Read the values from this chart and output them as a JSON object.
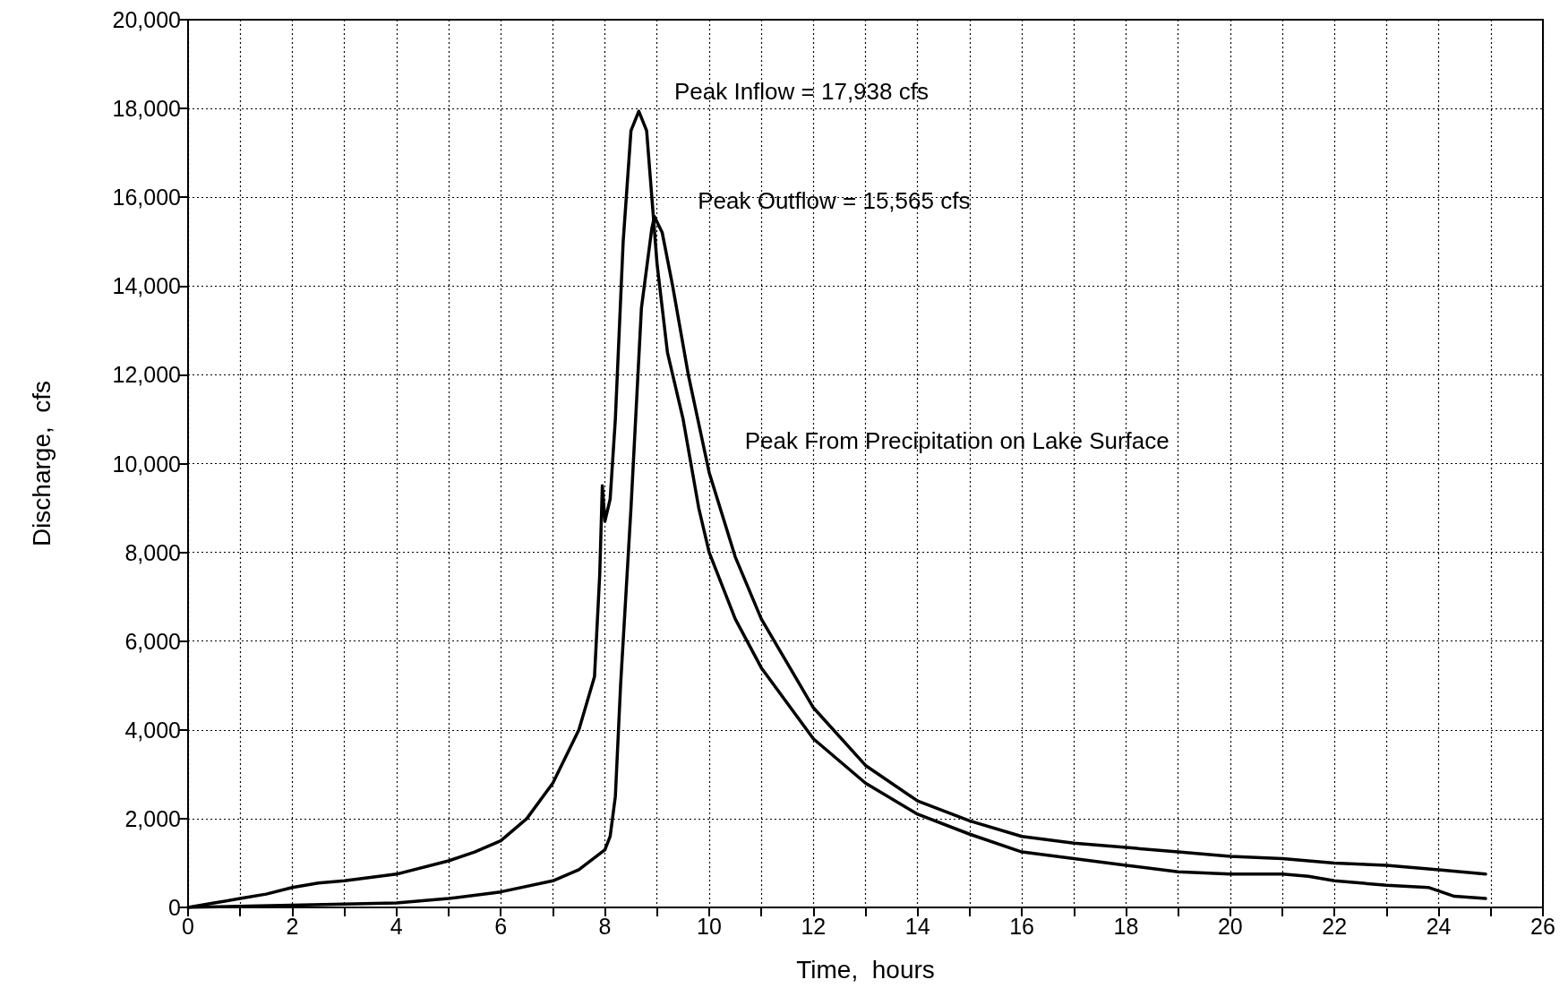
{
  "chart_data": {
    "type": "line",
    "xlabel": "Time,  hours",
    "ylabel": "Discharge,  cfs",
    "annotations": [
      "Peak Inflow = 17,938 cfs",
      "Peak Outflow = 15,565 cfs",
      "Peak From Precipitation on Lake Surface"
    ],
    "series": [
      {
        "color": "#000000",
        "x": [
          0,
          0.5,
          1,
          1.5,
          2,
          2.5,
          3,
          4,
          5,
          5.5,
          6,
          6.5,
          7,
          7.5,
          7.8,
          7.9,
          7.95,
          8.0,
          8.1,
          8.2,
          8.35,
          8.5,
          8.65,
          8.8,
          8.9,
          9.0,
          9.2,
          9.5,
          9.8,
          10,
          10.5,
          11,
          12,
          13,
          14,
          15,
          16,
          17,
          18,
          19,
          20,
          21,
          21.5,
          22,
          23,
          23.8,
          24.3,
          24.9
        ],
        "values": [
          0,
          100,
          200,
          300,
          450,
          550,
          600,
          750,
          1050,
          1250,
          1500,
          2000,
          2800,
          4000,
          5200,
          7500,
          9500,
          8700,
          9200,
          11000,
          15000,
          17500,
          17938,
          17500,
          16000,
          14500,
          12500,
          11000,
          9000,
          8000,
          6500,
          5400,
          3800,
          2800,
          2100,
          1650,
          1250,
          1100,
          950,
          800,
          750,
          750,
          700,
          600,
          500,
          450,
          250,
          200
        ]
      },
      {
        "color": "#000000",
        "x": [
          0,
          2,
          4,
          5,
          6,
          7,
          7.5,
          8,
          8.1,
          8.2,
          8.3,
          8.5,
          8.7,
          8.9,
          8.95,
          9.1,
          9.3,
          9.6,
          10,
          10.5,
          11,
          12,
          13,
          14,
          15,
          16,
          17,
          18,
          19,
          20,
          21,
          22,
          23,
          24,
          24.9
        ],
        "values": [
          0,
          50,
          100,
          200,
          350,
          600,
          850,
          1300,
          1600,
          2500,
          5000,
          9000,
          13500,
          15300,
          15565,
          15200,
          14000,
          12000,
          9800,
          7900,
          6500,
          4500,
          3200,
          2400,
          1950,
          1600,
          1450,
          1350,
          1250,
          1150,
          1100,
          1000,
          950,
          850,
          750
        ]
      }
    ],
    "xlim": [
      0,
      26
    ],
    "xticks": [
      0,
      {
        "value": 1,
        "label": null
      },
      2,
      {
        "value": 3,
        "label": null
      },
      4,
      {
        "value": 5,
        "label": null
      },
      6,
      {
        "value": 7,
        "label": null
      },
      8,
      {
        "value": 9,
        "label": null
      },
      10,
      {
        "value": 11,
        "label": null
      },
      12,
      {
        "value": 13,
        "label": null
      },
      14,
      {
        "value": 15,
        "label": null
      },
      16,
      {
        "value": 17,
        "label": null
      },
      18,
      {
        "value": 19,
        "label": null
      },
      20,
      {
        "value": 21,
        "label": null
      },
      22,
      {
        "value": 23,
        "label": null
      },
      24,
      {
        "value": 25,
        "label": null
      },
      26
    ],
    "ylim": [
      0,
      20000
    ],
    "yticks": [
      0,
      {
        "value": 2000,
        "label": "2,000"
      },
      {
        "value": 4000,
        "label": "4,000"
      },
      {
        "value": 6000,
        "label": "6,000"
      },
      {
        "value": 8000,
        "label": "8,000"
      },
      {
        "value": 10000,
        "label": "10,000"
      },
      {
        "value": 12000,
        "label": "12,000"
      },
      {
        "value": 14000,
        "label": "14,000"
      },
      {
        "value": 16000,
        "label": "16,000"
      },
      {
        "value": 18000,
        "label": "18,000"
      },
      {
        "value": 20000,
        "label": "20,000"
      }
    ],
    "grid": true,
    "marker": "none",
    "line_style": "solid"
  }
}
